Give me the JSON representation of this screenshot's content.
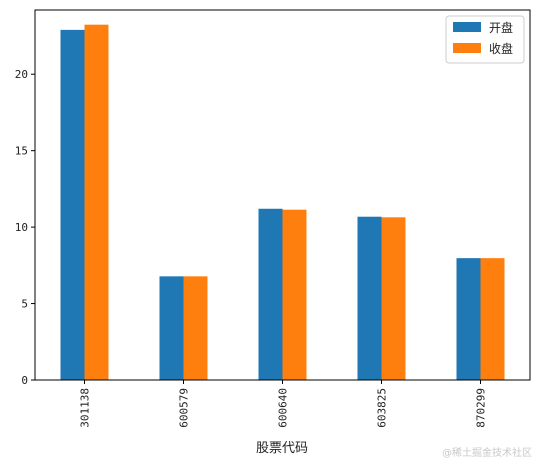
{
  "chart_data": {
    "type": "bar",
    "categories": [
      "301138",
      "600579",
      "600640",
      "603825",
      "870299"
    ],
    "series": [
      {
        "name": "开盘",
        "values": [
          22.9,
          6.78,
          11.2,
          10.68,
          7.97
        ],
        "color": "#1f77b4"
      },
      {
        "name": "收盘",
        "values": [
          23.24,
          6.78,
          11.14,
          10.64,
          7.97
        ],
        "color": "#ff7f0e"
      }
    ],
    "xlabel": "股票代码",
    "ylabel": "",
    "ylim": [
      0,
      24.2
    ],
    "yticks": [
      0,
      5,
      10,
      15,
      20
    ],
    "x_tick_rotation": "vertical",
    "legend_position": "top-right",
    "grid": false
  },
  "watermark": "@稀土掘金技术社区"
}
